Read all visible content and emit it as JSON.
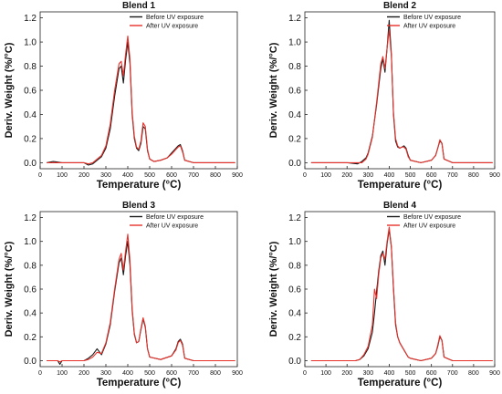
{
  "colors": {
    "before": "#1a1a1a",
    "after": "#e8312a"
  },
  "chart_data": [
    {
      "type": "line",
      "title": "Blend 1",
      "xlabel": "Temperature (°C)",
      "ylabel": "Deriv. Weight (%/°C)",
      "xlim": [
        0,
        900
      ],
      "ylim": [
        -0.05,
        1.25
      ],
      "xticks": [
        0,
        100,
        200,
        300,
        400,
        500,
        600,
        700,
        800,
        900
      ],
      "yticks": [
        0.0,
        0.2,
        0.4,
        0.6,
        0.8,
        1.0,
        1.2
      ],
      "legend": "top-right",
      "series": [
        {
          "name": "Before UV exposure",
          "color": "#1a1a1a",
          "x": [
            30,
            60,
            100,
            150,
            200,
            220,
            240,
            260,
            280,
            300,
            320,
            340,
            360,
            370,
            380,
            390,
            400,
            410,
            420,
            430,
            440,
            450,
            460,
            470,
            480,
            490,
            500,
            520,
            550,
            580,
            600,
            620,
            630,
            640,
            650,
            660,
            700,
            800,
            890
          ],
          "y": [
            0.0,
            0.01,
            0.0,
            0.0,
            0.0,
            -0.02,
            -0.01,
            0.02,
            0.05,
            0.12,
            0.28,
            0.55,
            0.78,
            0.8,
            0.66,
            0.85,
            1.0,
            0.82,
            0.4,
            0.2,
            0.12,
            0.1,
            0.16,
            0.3,
            0.28,
            0.1,
            0.03,
            0.01,
            0.02,
            0.04,
            0.08,
            0.12,
            0.14,
            0.15,
            0.1,
            0.02,
            0.0,
            0.0,
            0.0
          ]
        },
        {
          "name": "After UV exposure",
          "color": "#e8312a",
          "x": [
            30,
            60,
            100,
            150,
            200,
            220,
            240,
            260,
            280,
            300,
            320,
            340,
            360,
            370,
            380,
            390,
            400,
            410,
            420,
            430,
            440,
            450,
            460,
            470,
            480,
            490,
            500,
            520,
            550,
            580,
            600,
            620,
            630,
            640,
            650,
            660,
            700,
            800,
            890
          ],
          "y": [
            0.0,
            0.0,
            0.0,
            0.0,
            0.0,
            -0.01,
            0.0,
            0.03,
            0.06,
            0.14,
            0.32,
            0.6,
            0.82,
            0.84,
            0.72,
            0.9,
            1.05,
            0.86,
            0.42,
            0.22,
            0.13,
            0.11,
            0.18,
            0.33,
            0.3,
            0.11,
            0.03,
            0.01,
            0.02,
            0.04,
            0.07,
            0.11,
            0.13,
            0.14,
            0.09,
            0.02,
            0.0,
            0.0,
            0.0
          ]
        }
      ]
    },
    {
      "type": "line",
      "title": "Blend 2",
      "xlabel": "Temperature (°C)",
      "ylabel": "Deriv. Weight (%/°C)",
      "xlim": [
        0,
        900
      ],
      "ylim": [
        -0.05,
        1.25
      ],
      "xticks": [
        0,
        100,
        200,
        300,
        400,
        500,
        600,
        700,
        800,
        900
      ],
      "yticks": [
        0.0,
        0.2,
        0.4,
        0.6,
        0.8,
        1.0,
        1.2
      ],
      "legend": "top-right",
      "series": [
        {
          "name": "Before UV exposure",
          "color": "#1a1a1a",
          "x": [
            30,
            100,
            150,
            200,
            250,
            270,
            290,
            300,
            320,
            340,
            360,
            370,
            380,
            390,
            400,
            410,
            420,
            430,
            440,
            450,
            460,
            470,
            480,
            490,
            500,
            550,
            600,
            620,
            630,
            640,
            650,
            660,
            700,
            800,
            890
          ],
          "y": [
            0.0,
            0.0,
            0.0,
            0.0,
            -0.01,
            0.01,
            0.04,
            0.08,
            0.22,
            0.48,
            0.78,
            0.86,
            0.75,
            0.95,
            1.18,
            0.9,
            0.4,
            0.18,
            0.13,
            0.12,
            0.13,
            0.14,
            0.12,
            0.06,
            0.02,
            0.0,
            0.02,
            0.06,
            0.12,
            0.18,
            0.16,
            0.03,
            0.0,
            0.0,
            0.0
          ]
        },
        {
          "name": "After UV exposure",
          "color": "#e8312a",
          "x": [
            30,
            100,
            150,
            200,
            250,
            270,
            290,
            300,
            320,
            340,
            360,
            370,
            380,
            390,
            400,
            410,
            420,
            430,
            440,
            450,
            460,
            470,
            480,
            490,
            500,
            550,
            600,
            620,
            630,
            640,
            650,
            660,
            700,
            800,
            890
          ],
          "y": [
            0.0,
            0.0,
            0.0,
            0.0,
            0.0,
            0.0,
            0.03,
            0.07,
            0.21,
            0.5,
            0.82,
            0.88,
            0.78,
            0.95,
            1.1,
            0.88,
            0.42,
            0.2,
            0.14,
            0.12,
            0.13,
            0.13,
            0.11,
            0.05,
            0.02,
            0.0,
            0.02,
            0.06,
            0.12,
            0.19,
            0.16,
            0.03,
            0.0,
            0.0,
            0.0
          ]
        }
      ]
    },
    {
      "type": "line",
      "title": "Blend 3",
      "xlabel": "Temperature (°C)",
      "ylabel": "Deriv. Weight (%/°C)",
      "xlim": [
        0,
        900
      ],
      "ylim": [
        -0.05,
        1.25
      ],
      "xticks": [
        0,
        100,
        200,
        300,
        400,
        500,
        600,
        700,
        800,
        900
      ],
      "yticks": [
        0.0,
        0.2,
        0.4,
        0.6,
        0.8,
        1.0,
        1.2
      ],
      "legend": "top-right",
      "series": [
        {
          "name": "Before UV exposure",
          "color": "#1a1a1a",
          "x": [
            30,
            80,
            90,
            100,
            150,
            200,
            220,
            240,
            260,
            280,
            300,
            320,
            340,
            360,
            370,
            380,
            390,
            400,
            410,
            420,
            430,
            440,
            450,
            460,
            470,
            480,
            490,
            500,
            550,
            600,
            620,
            630,
            640,
            650,
            660,
            700,
            800,
            890
          ],
          "y": [
            0.0,
            0.0,
            -0.03,
            0.0,
            0.0,
            0.0,
            0.02,
            0.05,
            0.1,
            0.05,
            0.14,
            0.3,
            0.58,
            0.82,
            0.86,
            0.72,
            0.88,
            1.0,
            0.8,
            0.42,
            0.22,
            0.15,
            0.16,
            0.26,
            0.35,
            0.28,
            0.1,
            0.03,
            0.01,
            0.04,
            0.1,
            0.16,
            0.18,
            0.14,
            0.02,
            0.0,
            0.0,
            0.0
          ]
        },
        {
          "name": "After UV exposure",
          "color": "#e8312a",
          "x": [
            30,
            80,
            90,
            100,
            150,
            200,
            220,
            240,
            260,
            280,
            300,
            320,
            340,
            360,
            370,
            380,
            390,
            400,
            410,
            420,
            430,
            440,
            450,
            460,
            470,
            480,
            490,
            500,
            550,
            600,
            620,
            630,
            640,
            650,
            660,
            700,
            800,
            890
          ],
          "y": [
            0.0,
            0.0,
            -0.01,
            0.0,
            0.0,
            0.0,
            0.01,
            0.03,
            0.07,
            0.06,
            0.15,
            0.32,
            0.6,
            0.85,
            0.9,
            0.76,
            0.92,
            1.06,
            0.84,
            0.44,
            0.23,
            0.15,
            0.16,
            0.27,
            0.36,
            0.29,
            0.1,
            0.03,
            0.01,
            0.04,
            0.09,
            0.15,
            0.17,
            0.13,
            0.02,
            0.0,
            0.0,
            0.0
          ]
        }
      ]
    },
    {
      "type": "line",
      "title": "Blend 4",
      "xlabel": "Temperature (°C)",
      "ylabel": "Deriv. Weight (%/°C)",
      "xlim": [
        0,
        900
      ],
      "ylim": [
        -0.05,
        1.25
      ],
      "xticks": [
        0,
        100,
        200,
        300,
        400,
        500,
        600,
        700,
        800,
        900
      ],
      "yticks": [
        0.0,
        0.2,
        0.4,
        0.6,
        0.8,
        1.0,
        1.2
      ],
      "legend": "top-right",
      "series": [
        {
          "name": "Before UV exposure",
          "color": "#1a1a1a",
          "x": [
            30,
            100,
            150,
            200,
            240,
            260,
            280,
            300,
            320,
            330,
            340,
            350,
            360,
            370,
            380,
            390,
            400,
            410,
            420,
            430,
            440,
            450,
            460,
            470,
            480,
            490,
            500,
            550,
            600,
            620,
            630,
            640,
            650,
            660,
            700,
            800,
            890
          ],
          "y": [
            0.0,
            0.0,
            0.0,
            0.0,
            0.0,
            0.01,
            0.04,
            0.1,
            0.24,
            0.4,
            0.58,
            0.75,
            0.88,
            0.92,
            0.8,
            0.98,
            1.1,
            0.95,
            0.6,
            0.3,
            0.2,
            0.15,
            0.12,
            0.09,
            0.06,
            0.03,
            0.02,
            0.0,
            0.02,
            0.06,
            0.12,
            0.2,
            0.17,
            0.03,
            0.0,
            0.0,
            0.0
          ]
        },
        {
          "name": "After UV exposure",
          "color": "#e8312a",
          "x": [
            30,
            100,
            150,
            200,
            240,
            260,
            280,
            300,
            320,
            330,
            340,
            350,
            360,
            370,
            380,
            390,
            400,
            410,
            420,
            430,
            440,
            450,
            460,
            470,
            480,
            490,
            500,
            550,
            600,
            620,
            630,
            640,
            650,
            660,
            700,
            800,
            890
          ],
          "y": [
            0.0,
            0.0,
            0.0,
            0.0,
            0.0,
            0.01,
            0.05,
            0.12,
            0.3,
            0.6,
            0.52,
            0.72,
            0.86,
            0.9,
            0.85,
            1.0,
            1.12,
            0.96,
            0.62,
            0.32,
            0.2,
            0.15,
            0.12,
            0.09,
            0.06,
            0.03,
            0.02,
            0.0,
            0.02,
            0.06,
            0.13,
            0.21,
            0.17,
            0.03,
            0.0,
            0.0,
            0.0
          ]
        }
      ]
    }
  ]
}
